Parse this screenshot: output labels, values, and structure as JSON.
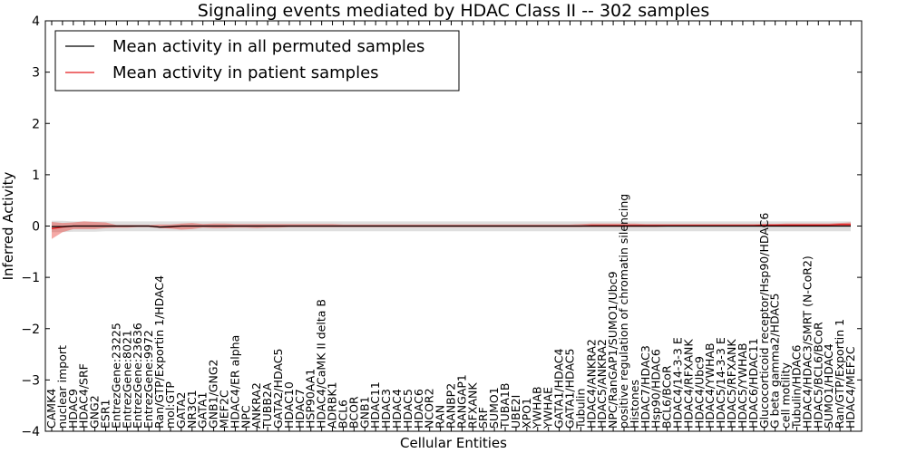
{
  "chart_data": {
    "type": "line",
    "title": "Signaling events mediated by HDAC Class II -- 302 samples",
    "xlabel": "Cellular Entities",
    "ylabel": "Inferred Activity",
    "ylim": [
      -4,
      4
    ],
    "yticks": [
      -4,
      -3,
      -2,
      -1,
      0,
      1,
      2,
      3,
      4
    ],
    "grid": false,
    "legend_position": "top-left",
    "categories": [
      "CAMK4",
      "nuclear import",
      "HDAC9",
      "HDAC4/SRF",
      "GNG2",
      "ESR1",
      "EntrezGene:23225",
      "EntrezGene:8021",
      "EntrezGene:23636",
      "EntrezGene:9972",
      "Ran/GTP/Exportin 1/HDAC4",
      "mol:GTP",
      "GATA2",
      "NR3C1",
      "GATA1",
      "GNB1/GNG2",
      "MEF2C",
      "HDAC4/ER alpha",
      "NPC",
      "ANKRA2",
      "TUBB2A",
      "GATA2/HDAC5",
      "HDAC10",
      "HDAC7",
      "HSP90AA1",
      "HDAC4/CaMK II delta B",
      "ADRBK1",
      "BCL6",
      "BCOR",
      "GNB1",
      "HDAC11",
      "HDAC3",
      "HDAC4",
      "HDAC5",
      "HDAC6",
      "NCOR2",
      "RAN",
      "RANBP2",
      "RANGAP1",
      "RFXANK",
      "SRF",
      "SUMO1",
      "TUBA1B",
      "UBE2I",
      "XPO1",
      "YWHAB",
      "YWHAE",
      "GATA1/HDAC4",
      "GATA1/HDAC5",
      "Tubulin",
      "HDAC4/ANKRA2",
      "HDAC5/ANKRA2",
      "NPC/RanGAP1/SUMO1/Ubc9",
      "positive regulation of chromatin silencing",
      "Histones",
      "HDAC7/HDAC3",
      "Hsp90/HDAC6",
      "BCL6/BCoR",
      "HDAC4/14-3-3 E",
      "HDAC4/RFXANK",
      "HDAC4/Ubc9",
      "HDAC4/YWHAB",
      "HDAC5/14-3-3 E",
      "HDAC5/RFXANK",
      "HDAC5/YWHAB",
      "HDAC6/HDAC11",
      "Glucocorticoid receptor/Hsp90/HDAC6",
      "G beta gamma2/HDAC5",
      "cell motility",
      "Tubulin/HDAC6",
      "HDAC4/HDAC3/SMRT (N-CoR2)",
      "HDAC5/BCL6/BCoR",
      "SUMO1/HDAC4",
      "Ran/GTP/Exportin 1",
      "HDAC4/MEF2C"
    ],
    "series": [
      {
        "name": "Mean activity in all permuted samples",
        "color": "#000000",
        "values": [
          -0.01,
          -0.01,
          0.0,
          0.0,
          0.0,
          0.0,
          0.0,
          0.0,
          0.0,
          0.0,
          -0.02,
          -0.01,
          0.0,
          0.0,
          0.0,
          0.0,
          0.0,
          0.0,
          0.0,
          0.0,
          0.0,
          0.0,
          0.0,
          0.0,
          0.0,
          0.0,
          0.0,
          0.0,
          0.0,
          0.0,
          0.0,
          0.0,
          0.0,
          0.0,
          0.0,
          0.0,
          0.0,
          0.0,
          0.0,
          0.0,
          0.0,
          0.0,
          0.0,
          0.0,
          0.0,
          0.0,
          0.0,
          0.0,
          0.0,
          0.0,
          0.0,
          0.0,
          0.0,
          0.0,
          0.0,
          0.0,
          0.0,
          0.0,
          0.0,
          0.0,
          0.0,
          0.0,
          0.0,
          0.0,
          0.0,
          0.0,
          0.0,
          0.0,
          0.0,
          0.0,
          0.0,
          0.0,
          0.0,
          0.0,
          0.0
        ],
        "band_lower": [
          -0.12,
          -0.12,
          -0.11,
          -0.11,
          -0.11,
          -0.1,
          -0.1,
          -0.1,
          -0.1,
          -0.1,
          -0.1,
          -0.1,
          -0.1,
          -0.1,
          -0.1,
          -0.1,
          -0.1,
          -0.1,
          -0.1,
          -0.1,
          -0.1,
          -0.1,
          -0.1,
          -0.1,
          -0.1,
          -0.1,
          -0.1,
          -0.1,
          -0.1,
          -0.1,
          -0.1,
          -0.1,
          -0.1,
          -0.1,
          -0.1,
          -0.1,
          -0.1,
          -0.1,
          -0.1,
          -0.1,
          -0.1,
          -0.1,
          -0.1,
          -0.1,
          -0.1,
          -0.1,
          -0.1,
          -0.1,
          -0.1,
          -0.1,
          -0.1,
          -0.1,
          -0.1,
          -0.1,
          -0.1,
          -0.1,
          -0.1,
          -0.1,
          -0.1,
          -0.1,
          -0.1,
          -0.1,
          -0.1,
          -0.1,
          -0.1,
          -0.1,
          -0.1,
          -0.1,
          -0.1,
          -0.1,
          -0.1,
          -0.1,
          -0.1,
          -0.1,
          -0.1
        ],
        "band_upper": [
          0.1,
          0.1,
          0.09,
          0.09,
          0.09,
          0.09,
          0.09,
          0.09,
          0.09,
          0.09,
          0.09,
          0.09,
          0.09,
          0.09,
          0.09,
          0.09,
          0.09,
          0.09,
          0.09,
          0.09,
          0.09,
          0.09,
          0.09,
          0.09,
          0.09,
          0.09,
          0.09,
          0.09,
          0.09,
          0.09,
          0.09,
          0.09,
          0.09,
          0.09,
          0.09,
          0.09,
          0.09,
          0.09,
          0.09,
          0.09,
          0.09,
          0.09,
          0.09,
          0.09,
          0.09,
          0.09,
          0.09,
          0.09,
          0.09,
          0.09,
          0.09,
          0.09,
          0.09,
          0.09,
          0.09,
          0.09,
          0.09,
          0.09,
          0.09,
          0.09,
          0.09,
          0.09,
          0.09,
          0.09,
          0.09,
          0.09,
          0.09,
          0.09,
          0.09,
          0.09,
          0.09,
          0.09,
          0.09,
          0.09,
          0.09
        ]
      },
      {
        "name": "Mean activity in patient samples",
        "color": "#e41a1c",
        "values": [
          -0.05,
          -0.02,
          0.0,
          0.0,
          0.0,
          0.0,
          0.0,
          0.0,
          0.0,
          0.0,
          -0.02,
          -0.02,
          0.0,
          0.0,
          0.0,
          0.0,
          0.0,
          0.0,
          0.0,
          0.0,
          0.0,
          0.0,
          0.0,
          0.0,
          0.0,
          0.0,
          0.0,
          0.0,
          0.0,
          0.0,
          0.0,
          0.0,
          0.0,
          0.0,
          0.0,
          0.0,
          0.0,
          0.0,
          0.0,
          0.0,
          0.0,
          0.0,
          0.0,
          0.0,
          0.0,
          0.0,
          0.0,
          0.0,
          0.0,
          0.0,
          0.01,
          0.01,
          0.01,
          0.01,
          0.01,
          0.01,
          0.01,
          0.01,
          0.01,
          0.01,
          0.01,
          0.01,
          0.01,
          0.01,
          0.01,
          0.01,
          0.02,
          0.02,
          0.02,
          0.02,
          0.02,
          0.02,
          0.02,
          0.03,
          0.03
        ],
        "band_lower": [
          -0.25,
          -0.12,
          -0.06,
          -0.06,
          -0.06,
          -0.04,
          -0.03,
          -0.03,
          -0.02,
          -0.02,
          -0.04,
          -0.05,
          -0.07,
          -0.06,
          -0.03,
          -0.04,
          -0.04,
          -0.03,
          -0.03,
          -0.04,
          -0.03,
          -0.03,
          -0.02,
          -0.02,
          -0.02,
          -0.02,
          -0.02,
          -0.02,
          -0.02,
          -0.02,
          -0.02,
          -0.02,
          -0.02,
          -0.02,
          -0.02,
          -0.02,
          -0.02,
          -0.02,
          -0.02,
          -0.02,
          -0.02,
          -0.02,
          -0.02,
          -0.02,
          -0.02,
          -0.02,
          -0.02,
          -0.02,
          -0.02,
          -0.02,
          -0.02,
          -0.02,
          -0.02,
          -0.02,
          -0.02,
          -0.02,
          -0.02,
          -0.01,
          -0.01,
          -0.01,
          -0.01,
          -0.01,
          -0.01,
          -0.01,
          -0.01,
          -0.01,
          -0.01,
          -0.01,
          -0.01,
          -0.01,
          -0.01,
          -0.01,
          -0.01,
          0.0,
          0.0
        ],
        "band_upper": [
          0.08,
          0.06,
          0.07,
          0.09,
          0.08,
          0.07,
          0.02,
          0.02,
          0.02,
          0.02,
          0.03,
          0.03,
          0.05,
          0.06,
          0.04,
          0.05,
          0.05,
          0.04,
          0.04,
          0.04,
          0.04,
          0.04,
          0.04,
          0.04,
          0.04,
          0.04,
          0.04,
          0.03,
          0.03,
          0.03,
          0.03,
          0.03,
          0.03,
          0.03,
          0.03,
          0.03,
          0.03,
          0.03,
          0.03,
          0.03,
          0.03,
          0.03,
          0.03,
          0.03,
          0.03,
          0.03,
          0.03,
          0.03,
          0.03,
          0.04,
          0.05,
          0.05,
          0.05,
          0.05,
          0.05,
          0.04,
          0.04,
          0.04,
          0.04,
          0.04,
          0.04,
          0.04,
          0.04,
          0.04,
          0.04,
          0.04,
          0.04,
          0.04,
          0.05,
          0.05,
          0.05,
          0.05,
          0.05,
          0.06,
          0.07
        ]
      }
    ]
  }
}
